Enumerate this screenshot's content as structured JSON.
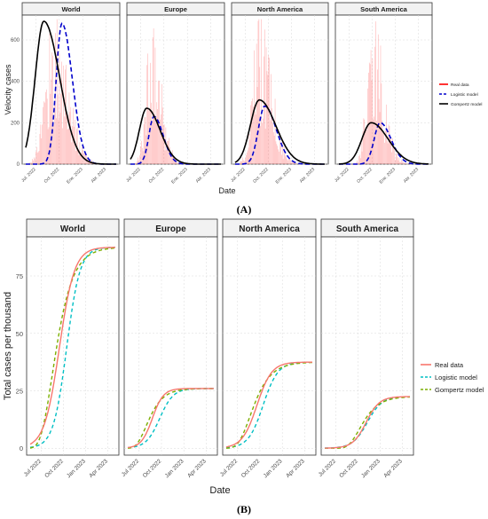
{
  "chart_data": [
    {
      "type": "line",
      "panel_label": "(A)",
      "xlabel": "Date",
      "ylabel": "Velocity cases",
      "ylim": [
        0,
        720
      ],
      "y_ticks": [
        "0",
        "200",
        "400",
        "600"
      ],
      "x_ticks": [
        "Jul. 2022",
        "Oct. 2022",
        "Ene. 2023",
        "Abr. 2023"
      ],
      "legend_position": "right",
      "legend": [
        {
          "label": "Real data",
          "color": "#ff0000",
          "dash": "solid"
        },
        {
          "label": "Logistic model",
          "color": "#0000cc",
          "dash": "dashed"
        },
        {
          "label": "Gompertz model",
          "color": "#000000",
          "dash": "solid"
        }
      ],
      "facets": [
        {
          "name": "World",
          "logistic": {
            "peak_x": 4.0,
            "peak_y": 680,
            "width": 1.7
          },
          "gompertz": {
            "peak_x": 2.0,
            "peak_y": 690,
            "width": 2.6
          },
          "real_data": {
            "start": 0.3,
            "peak_x": 3.0,
            "peak_y": 660,
            "width": 2.4
          }
        },
        {
          "name": "Europe",
          "logistic": {
            "peak_x": 2.6,
            "peak_y": 230,
            "width": 1.5
          },
          "gompertz": {
            "peak_x": 1.8,
            "peak_y": 270,
            "width": 2.2
          },
          "real_data": {
            "start": 0.4,
            "peak_x": 2.3,
            "peak_y": 650,
            "width": 1.6
          }
        },
        {
          "name": "North America",
          "logistic": {
            "peak_x": 3.3,
            "peak_y": 280,
            "width": 1.9
          },
          "gompertz": {
            "peak_x": 2.7,
            "peak_y": 310,
            "width": 2.7
          },
          "real_data": {
            "start": 0.5,
            "peak_x": 2.7,
            "peak_y": 660,
            "width": 2.0
          }
        },
        {
          "name": "South America",
          "logistic": {
            "peak_x": 4.6,
            "peak_y": 200,
            "width": 1.8
          },
          "gompertz": {
            "peak_x": 3.6,
            "peak_y": 200,
            "width": 2.8
          },
          "real_data": {
            "start": 1.5,
            "peak_x": 3.8,
            "peak_y": 650,
            "width": 1.8
          }
        }
      ]
    },
    {
      "type": "line",
      "panel_label": "(B)",
      "xlabel": "Date",
      "ylabel": "Total cases per thousand",
      "ylim": [
        -3,
        92
      ],
      "y_ticks": [
        "0",
        "25",
        "50",
        "75"
      ],
      "x_ticks": [
        "Jul 2022",
        "Oct 2022",
        "Jan 2023",
        "Apr 2023"
      ],
      "legend_position": "right",
      "legend": [
        {
          "label": "Real data",
          "color": "#f8766d",
          "dash": "solid"
        },
        {
          "label": "Logistic model",
          "color": "#00bfc4",
          "dash": "dashed"
        },
        {
          "label": "Gompertz model",
          "color": "#7cae00",
          "dash": "dashed"
        }
      ],
      "facets": [
        {
          "name": "World",
          "real_data": {
            "final": 87.5,
            "mid": 2.4,
            "scale": 0.62
          },
          "logistic": {
            "final": 87.5,
            "mid": 3.0,
            "scale": 0.55
          },
          "gompertz": {
            "final": 87.5,
            "mid": 2.2,
            "scale": 0.85
          }
        },
        {
          "name": "Europe",
          "real_data": {
            "final": 26,
            "mid": 2.0,
            "scale": 0.45
          },
          "logistic": {
            "final": 26,
            "mid": 2.6,
            "scale": 0.55
          },
          "gompertz": {
            "final": 26,
            "mid": 1.8,
            "scale": 0.7
          }
        },
        {
          "name": "North America",
          "real_data": {
            "final": 37.5,
            "mid": 2.5,
            "scale": 0.6
          },
          "logistic": {
            "final": 37.5,
            "mid": 3.0,
            "scale": 0.6
          },
          "gompertz": {
            "final": 37.5,
            "mid": 2.3,
            "scale": 0.85
          }
        },
        {
          "name": "South America",
          "real_data": {
            "final": 22.5,
            "mid": 3.4,
            "scale": 0.55
          },
          "logistic": {
            "final": 22.5,
            "mid": 3.5,
            "scale": 0.6
          },
          "gompertz": {
            "final": 22.5,
            "mid": 3.2,
            "scale": 0.8
          }
        }
      ]
    }
  ]
}
